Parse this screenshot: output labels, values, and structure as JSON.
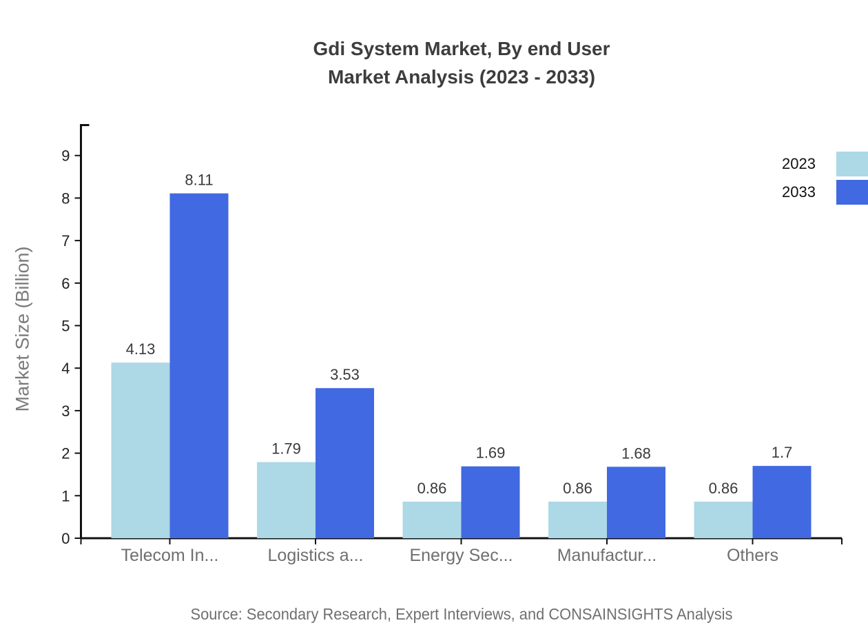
{
  "title": {
    "line1": "Gdi System Market, By end User",
    "line2": "Market Analysis (2023 - 2033)"
  },
  "y_axis": {
    "label": "Market Size (Billion)",
    "ticks": [
      0,
      1,
      2,
      3,
      4,
      5,
      6,
      7,
      8,
      9
    ]
  },
  "legend": {
    "items": [
      {
        "label": "2023",
        "color": "#add8e6"
      },
      {
        "label": "2033",
        "color": "#4169e1"
      }
    ]
  },
  "source_note": "Source: Secondary Research, Expert Interviews, and CONSAINSIGHTS Analysis",
  "chart_data": {
    "type": "bar",
    "title": "Gdi System Market, By end User Market Analysis (2023 - 2033)",
    "categories": [
      "Telecom In...",
      "Logistics a...",
      "Energy Sec...",
      "Manufactur...",
      "Others"
    ],
    "series": [
      {
        "name": "2023",
        "color": "#add8e6",
        "values": [
          4.13,
          1.79,
          0.86,
          0.86,
          0.86
        ]
      },
      {
        "name": "2033",
        "color": "#4169e1",
        "values": [
          8.11,
          3.53,
          1.69,
          1.68,
          1.7
        ]
      }
    ],
    "xlabel": "",
    "ylabel": "Market Size (Billion)",
    "ylim": [
      0,
      9.7
    ],
    "yticks": [
      0,
      1,
      2,
      3,
      4,
      5,
      6,
      7,
      8,
      9
    ],
    "grid": false,
    "legend_position": "top-right",
    "value_labels": true,
    "axis_color": "#111111",
    "label_color": "#3a3a3a"
  }
}
